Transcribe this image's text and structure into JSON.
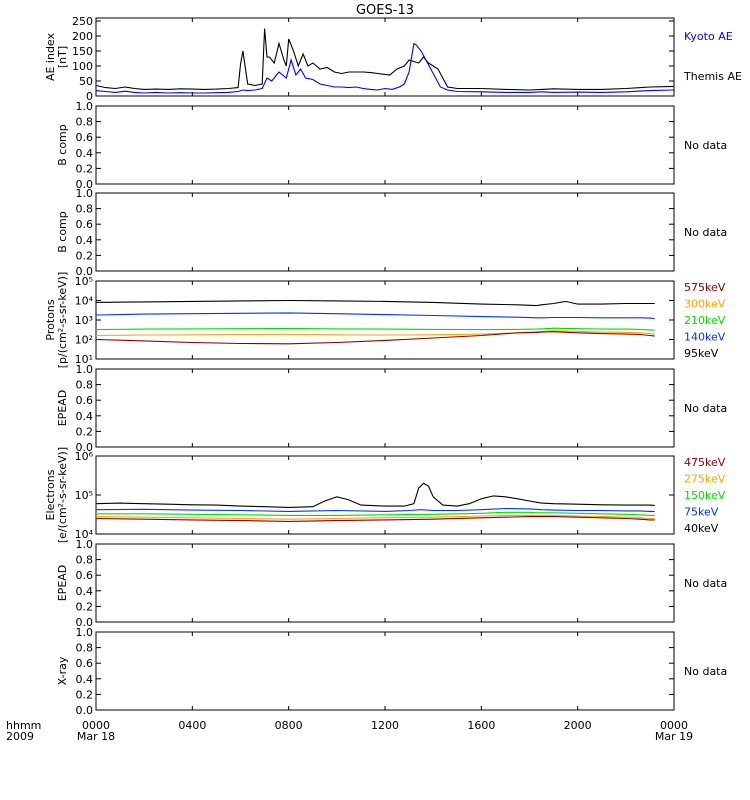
{
  "title": "GOES-13",
  "x_axis": {
    "row_label": "hhmm",
    "year": "2009",
    "ticks": [
      "0000",
      "0400",
      "0800",
      "1200",
      "1600",
      "2000",
      "0000"
    ],
    "tick_hours": [
      0,
      4,
      8,
      12,
      16,
      20,
      24
    ],
    "date_start": "Mar 18",
    "date_end": "Mar 19"
  },
  "colors": {
    "kyoto": "#0000ff",
    "themis": "#000000",
    "575keV": "#8b0000",
    "300keV": "#ffa500",
    "210keV": "#00e000",
    "140keV": "#0033ff",
    "95keV": "#000000",
    "475keV": "#8b0000",
    "275keV": "#ffa500",
    "150keV": "#00e000",
    "75keV": "#0033ff",
    "40keV": "#000000"
  },
  "panels": [
    {
      "id": "ae",
      "ylabel": [
        "AE index",
        "[nT]"
      ],
      "scale": "linear",
      "ylim": [
        0,
        260
      ],
      "ticks": [
        "250",
        "200",
        "150",
        "100",
        "50",
        "0"
      ],
      "tick_values": [
        250,
        200,
        150,
        100,
        50,
        0
      ],
      "legend": [
        {
          "name": "Kyoto AE",
          "color": "#0000ff"
        },
        {
          "name": "Themis AE",
          "color": "#000000"
        }
      ]
    },
    {
      "id": "bcomp1",
      "ylabel": [
        "B comp"
      ],
      "scale": "linear",
      "ylim": [
        0,
        1
      ],
      "ticks": [
        "1.0",
        "0.8",
        "0.6",
        "0.4",
        "0.2",
        "0.0"
      ],
      "tick_values": [
        1.0,
        0.8,
        0.6,
        0.4,
        0.2,
        0.0
      ],
      "no_data": "No data"
    },
    {
      "id": "bcomp2",
      "ylabel": [
        "B comp"
      ],
      "scale": "linear",
      "ylim": [
        0,
        1
      ],
      "ticks": [
        "1.0",
        "0.8",
        "0.6",
        "0.4",
        "0.2",
        "0.0"
      ],
      "tick_values": [
        1.0,
        0.8,
        0.6,
        0.4,
        0.2,
        0.0
      ],
      "no_data": "No data"
    },
    {
      "id": "protons",
      "ylabel": [
        "Protons",
        "[p/(cm²-s-sr-keV)]"
      ],
      "scale": "log",
      "ylim": [
        10,
        100000
      ],
      "ticks": [
        "10⁵",
        "10⁴",
        "10³",
        "10²",
        "10¹"
      ],
      "tick_values": [
        100000,
        10000,
        1000,
        100,
        10
      ],
      "legend": [
        {
          "name": "575keV",
          "color": "#8b0000"
        },
        {
          "name": "300keV",
          "color": "#ffa500"
        },
        {
          "name": "210keV",
          "color": "#00e000"
        },
        {
          "name": "140keV",
          "color": "#0033ff"
        },
        {
          "name": "95keV",
          "color": "#000000"
        }
      ]
    },
    {
      "id": "epead1",
      "ylabel": [
        "EPEAD"
      ],
      "scale": "linear",
      "ylim": [
        0,
        1
      ],
      "ticks": [
        "1.0",
        "0.8",
        "0.6",
        "0.4",
        "0.2",
        "0.0"
      ],
      "tick_values": [
        1.0,
        0.8,
        0.6,
        0.4,
        0.2,
        0.0
      ],
      "no_data": "No data"
    },
    {
      "id": "electrons",
      "ylabel": [
        "Electrons",
        "[e/(cm²-s-sr-keV)]"
      ],
      "scale": "log",
      "ylim": [
        10000,
        1000000
      ],
      "ticks": [
        "10⁶",
        "10⁵",
        "10⁴"
      ],
      "tick_values": [
        1000000,
        100000,
        10000
      ],
      "legend": [
        {
          "name": "475keV",
          "color": "#8b0000"
        },
        {
          "name": "275keV",
          "color": "#ffa500"
        },
        {
          "name": "150keV",
          "color": "#00e000"
        },
        {
          "name": "75keV",
          "color": "#0033ff"
        },
        {
          "name": "40keV",
          "color": "#000000"
        }
      ]
    },
    {
      "id": "epead2",
      "ylabel": [
        "EPEAD"
      ],
      "scale": "linear",
      "ylim": [
        0,
        1
      ],
      "ticks": [
        "1.0",
        "0.8",
        "0.6",
        "0.4",
        "0.2",
        "0.0"
      ],
      "tick_values": [
        1.0,
        0.8,
        0.6,
        0.4,
        0.2,
        0.0
      ],
      "no_data": "No data"
    },
    {
      "id": "xray",
      "ylabel": [
        "X-ray"
      ],
      "scale": "linear",
      "ylim": [
        0,
        1
      ],
      "ticks": [
        "1.0",
        "0.8",
        "0.6",
        "0.4",
        "0.2",
        "0.0"
      ],
      "tick_values": [
        1.0,
        0.8,
        0.6,
        0.4,
        0.2,
        0.0
      ],
      "no_data": "No data"
    }
  ],
  "chart_data": [
    {
      "type": "line",
      "panel": "ae",
      "xlabel": "hhmm",
      "ylabel": "AE index [nT]",
      "xlim": [
        0,
        24
      ],
      "ylim": [
        0,
        260
      ],
      "series": [
        {
          "name": "Themis AE",
          "x": [
            0,
            0.4,
            0.8,
            1.2,
            1.6,
            2.0,
            2.5,
            3,
            3.5,
            4,
            4.5,
            5,
            5.5,
            5.9,
            6.0,
            6.1,
            6.3,
            6.6,
            6.9,
            7.0,
            7.1,
            7.2,
            7.4,
            7.6,
            7.8,
            7.9,
            8.0,
            8.2,
            8.4,
            8.6,
            8.8,
            9.0,
            9.3,
            9.6,
            9.9,
            10.2,
            10.5,
            10.8,
            11.1,
            11.4,
            11.7,
            12.0,
            12.2,
            12.5,
            12.8,
            13.0,
            13.2,
            13.4,
            13.6,
            13.8,
            14.0,
            14.2,
            14.4,
            14.6,
            15.0,
            16,
            17,
            18,
            18.5,
            19,
            20,
            21,
            22,
            23,
            24
          ],
          "y": [
            35,
            28,
            25,
            30,
            25,
            22,
            23,
            22,
            24,
            23,
            22,
            23,
            25,
            28,
            105,
            150,
            40,
            35,
            40,
            225,
            130,
            130,
            110,
            175,
            120,
            100,
            190,
            150,
            100,
            140,
            100,
            110,
            90,
            95,
            80,
            75,
            80,
            80,
            80,
            78,
            75,
            72,
            70,
            90,
            100,
            120,
            115,
            110,
            130,
            110,
            100,
            90,
            60,
            30,
            25,
            25,
            22,
            20,
            22,
            24,
            22,
            22,
            25,
            30,
            32
          ]
        },
        {
          "name": "Kyoto AE",
          "x": [
            0,
            0.4,
            0.8,
            1.2,
            1.6,
            2.0,
            2.5,
            3,
            3.5,
            4,
            4.5,
            5,
            5.5,
            5.9,
            6.1,
            6.3,
            6.6,
            6.9,
            7.1,
            7.3,
            7.6,
            7.9,
            8.1,
            8.3,
            8.5,
            8.7,
            9.0,
            9.3,
            9.6,
            9.9,
            10.2,
            10.5,
            10.8,
            11.1,
            11.4,
            11.7,
            12.0,
            12.3,
            12.6,
            12.8,
            13.0,
            13.2,
            13.3,
            13.5,
            13.7,
            13.9,
            14.1,
            14.3,
            14.6,
            15,
            16,
            17,
            18,
            18.5,
            19,
            20,
            21,
            22,
            23,
            24
          ],
          "y": [
            18,
            15,
            12,
            16,
            12,
            10,
            12,
            10,
            11,
            10,
            10,
            11,
            12,
            15,
            20,
            18,
            20,
            25,
            60,
            50,
            80,
            60,
            120,
            70,
            90,
            60,
            55,
            40,
            35,
            30,
            30,
            28,
            30,
            25,
            22,
            20,
            25,
            22,
            30,
            40,
            80,
            175,
            170,
            150,
            120,
            90,
            60,
            30,
            20,
            15,
            14,
            12,
            12,
            14,
            12,
            13,
            12,
            14,
            18,
            20
          ]
        }
      ]
    },
    {
      "type": "line",
      "panel": "protons",
      "xlabel": "hhmm",
      "ylabel": "Protons [p/(cm²-s-sr-keV)]",
      "scale": "log",
      "xlim": [
        0,
        24
      ],
      "ylim": [
        10,
        100000
      ],
      "series": [
        {
          "name": "95keV",
          "x": [
            0,
            2,
            4,
            6,
            8,
            10,
            12,
            14,
            16,
            17.5,
            18.3,
            18.5,
            19,
            19.5,
            20,
            21,
            22,
            22.6,
            23,
            23.2
          ],
          "y": [
            8000,
            8500,
            9000,
            9500,
            10000,
            9500,
            9000,
            8000,
            6500,
            6000,
            5500,
            6000,
            7000,
            9000,
            6500,
            6500,
            7000,
            7000,
            7000,
            7000
          ]
        },
        {
          "name": "140keV",
          "x": [
            0,
            2,
            4,
            6,
            8,
            10,
            12,
            14,
            16,
            17.5,
            18.3,
            18.5,
            19,
            20,
            21,
            22,
            22.6,
            23,
            23.2
          ],
          "y": [
            1800,
            2000,
            2100,
            2200,
            2300,
            2100,
            1900,
            1700,
            1500,
            1400,
            1300,
            1300,
            1350,
            1350,
            1300,
            1300,
            1300,
            1250,
            1200
          ]
        },
        {
          "name": "210keV",
          "x": [
            0,
            2,
            4,
            6,
            8,
            10,
            12,
            14,
            16,
            17.5,
            18.3,
            18.5,
            19,
            20,
            21,
            22,
            22.6,
            23,
            23.2
          ],
          "y": [
            320,
            340,
            350,
            360,
            370,
            350,
            340,
            330,
            320,
            330,
            340,
            350,
            380,
            360,
            340,
            340,
            330,
            310,
            300
          ]
        },
        {
          "name": "300keV",
          "x": [
            0,
            2,
            4,
            6,
            8,
            10,
            12,
            14,
            16,
            17.5,
            18.3,
            18.5,
            19,
            20,
            21,
            22,
            22.6,
            23,
            23.2
          ],
          "y": [
            160,
            170,
            175,
            180,
            185,
            175,
            170,
            175,
            190,
            220,
            250,
            260,
            280,
            260,
            240,
            230,
            220,
            200,
            190
          ]
        },
        {
          "name": "575keV",
          "x": [
            0,
            2,
            4,
            6,
            8,
            10,
            12,
            14,
            16,
            17.5,
            18.3,
            18.5,
            19,
            20,
            21,
            22,
            22.6,
            23,
            23.2
          ],
          "y": [
            100,
            85,
            70,
            62,
            60,
            70,
            90,
            120,
            160,
            220,
            230,
            240,
            250,
            220,
            200,
            190,
            180,
            160,
            150
          ]
        }
      ]
    },
    {
      "type": "line",
      "panel": "electrons",
      "xlabel": "hhmm",
      "ylabel": "Electrons [e/(cm²-s-sr-keV)]",
      "scale": "log",
      "xlim": [
        0,
        24
      ],
      "ylim": [
        10000,
        1000000
      ],
      "series": [
        {
          "name": "40keV",
          "x": [
            0,
            1,
            2,
            3,
            4,
            5,
            6,
            7,
            8,
            9,
            9.5,
            10,
            10.5,
            11,
            12,
            12.8,
            13.2,
            13.4,
            13.6,
            13.8,
            14,
            14.4,
            15,
            15.5,
            16,
            16.5,
            17,
            17.5,
            18,
            18.3,
            18.5,
            19,
            20,
            21,
            22,
            22.6,
            23,
            23.2
          ],
          "y": [
            60000,
            62000,
            60000,
            58000,
            56000,
            55000,
            52000,
            50000,
            48000,
            50000,
            70000,
            90000,
            75000,
            55000,
            52000,
            52000,
            60000,
            150000,
            200000,
            170000,
            90000,
            55000,
            52000,
            60000,
            80000,
            95000,
            90000,
            80000,
            70000,
            65000,
            62000,
            60000,
            58000,
            56000,
            55000,
            55000,
            55000,
            54000
          ]
        },
        {
          "name": "75keV",
          "x": [
            0,
            2,
            4,
            6,
            8,
            10,
            12,
            13,
            13.5,
            14,
            15,
            16,
            17,
            18,
            18.3,
            18.5,
            19,
            20,
            21,
            22,
            22.6,
            23,
            23.2
          ],
          "y": [
            42000,
            43000,
            41000,
            40000,
            38000,
            40000,
            38000,
            40000,
            42000,
            40000,
            40000,
            42000,
            45000,
            44000,
            43000,
            42000,
            41000,
            40000,
            40000,
            39000,
            39000,
            38000,
            38000
          ]
        },
        {
          "name": "150keV",
          "x": [
            0,
            2,
            4,
            6,
            8,
            10,
            12,
            14,
            16,
            17,
            18,
            18.3,
            18.5,
            19,
            20,
            21,
            22,
            22.6,
            23,
            23.2
          ],
          "y": [
            33000,
            33000,
            32000,
            31000,
            30000,
            30000,
            31000,
            32000,
            34000,
            36000,
            36000,
            35000,
            35000,
            35000,
            34000,
            33000,
            32000,
            31000,
            30000,
            30000
          ]
        },
        {
          "name": "275keV",
          "x": [
            0,
            2,
            4,
            6,
            8,
            10,
            12,
            14,
            16,
            17,
            18,
            18.3,
            18.5,
            19,
            20,
            21,
            22,
            22.6,
            23,
            23.2
          ],
          "y": [
            28000,
            27000,
            26000,
            25000,
            24000,
            25000,
            26000,
            27000,
            29000,
            30000,
            30000,
            30000,
            30000,
            30000,
            29000,
            28000,
            27000,
            26000,
            25000,
            25000
          ]
        },
        {
          "name": "475keV",
          "x": [
            0,
            2,
            4,
            6,
            8,
            10,
            12,
            14,
            16,
            17,
            18,
            18.3,
            18.5,
            19,
            20,
            21,
            22,
            22.6,
            23,
            23.2
          ],
          "y": [
            25000,
            24000,
            23000,
            22000,
            21000,
            22000,
            23000,
            24000,
            26000,
            27000,
            28000,
            28000,
            28000,
            28000,
            27000,
            26000,
            25000,
            24000,
            23000,
            23000
          ]
        }
      ]
    }
  ]
}
